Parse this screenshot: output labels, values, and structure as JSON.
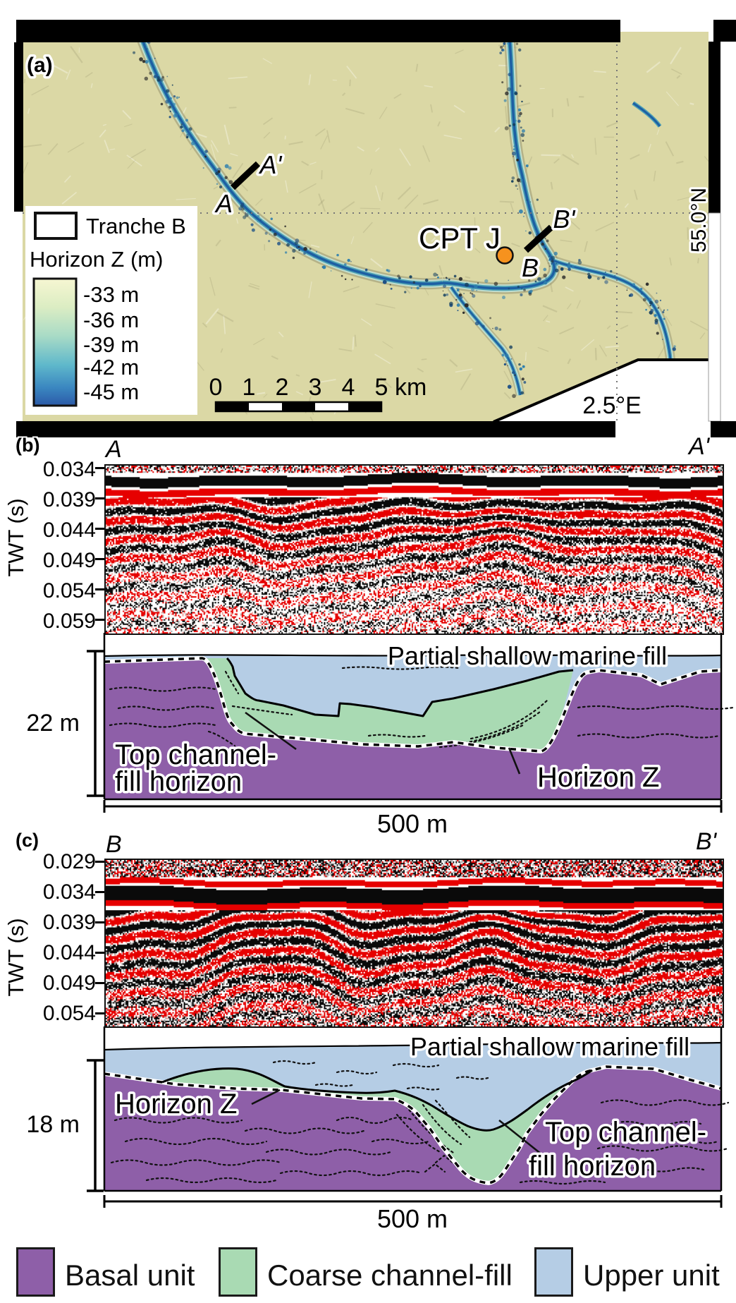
{
  "colors": {
    "basal_unit": "#8e5fa8",
    "coarse_channel_fill": "#a9dab3",
    "upper_unit": "#b5cde5",
    "map_background": "#dbd8a5",
    "channel_core_blue": "#1d5fa3",
    "channel_mid_teal": "#4fa3b5",
    "marker_orange": "#f6921e",
    "seismic_red": "#e60000",
    "colorbar_stops": [
      "#f6f6d2",
      "#dcedc3",
      "#a9dbc6",
      "#5fb8cb",
      "#3a86c0",
      "#2c5aa8"
    ]
  },
  "map": {
    "panel_label": "(a)",
    "legend": {
      "tranche": "Tranche B",
      "colorbar_title": "Horizon Z (m)",
      "ticks": [
        "-33 m",
        "-36 m",
        "-39 m",
        "-42 m",
        "-45 m"
      ]
    },
    "scalebar": {
      "numbers": [
        "0",
        "1",
        "2",
        "3",
        "4",
        "5"
      ],
      "unit": "km"
    },
    "lat_label": "55.0°N",
    "lon_label": "2.5°E",
    "cpt_label": "CPT J",
    "transects": {
      "a_start": "A",
      "a_end": "A'",
      "b_start": "B",
      "b_end": "B'"
    }
  },
  "section_b": {
    "panel_label": "(b)",
    "start_label": "A",
    "end_label": "A'",
    "axis_title": "TWT (s)",
    "ticks": [
      "0.034",
      "0.039",
      "0.044",
      "0.049",
      "0.054",
      "0.059"
    ],
    "depth_scale": "22 m",
    "width_scale": "500 m",
    "marine_label": "Partial shallow marine fill",
    "top_channel_line1": "Top channel-",
    "top_channel_line2": "fill horizon",
    "horizon_label": "Horizon Z"
  },
  "section_c": {
    "panel_label": "(c)",
    "start_label": "B",
    "end_label": "B'",
    "axis_title": "TWT (s)",
    "ticks": [
      "0.029",
      "0.034",
      "0.039",
      "0.044",
      "0.049",
      "0.054"
    ],
    "depth_scale": "18 m",
    "width_scale": "500 m",
    "marine_label": "Partial shallow marine fill",
    "top_channel_line1": "Top channel-",
    "top_channel_line2": "fill horizon",
    "horizon_label": "Horizon Z"
  },
  "legend": {
    "items": [
      {
        "label": "Basal unit"
      },
      {
        "label": "Coarse channel-fill"
      },
      {
        "label": "Upper unit"
      }
    ]
  }
}
